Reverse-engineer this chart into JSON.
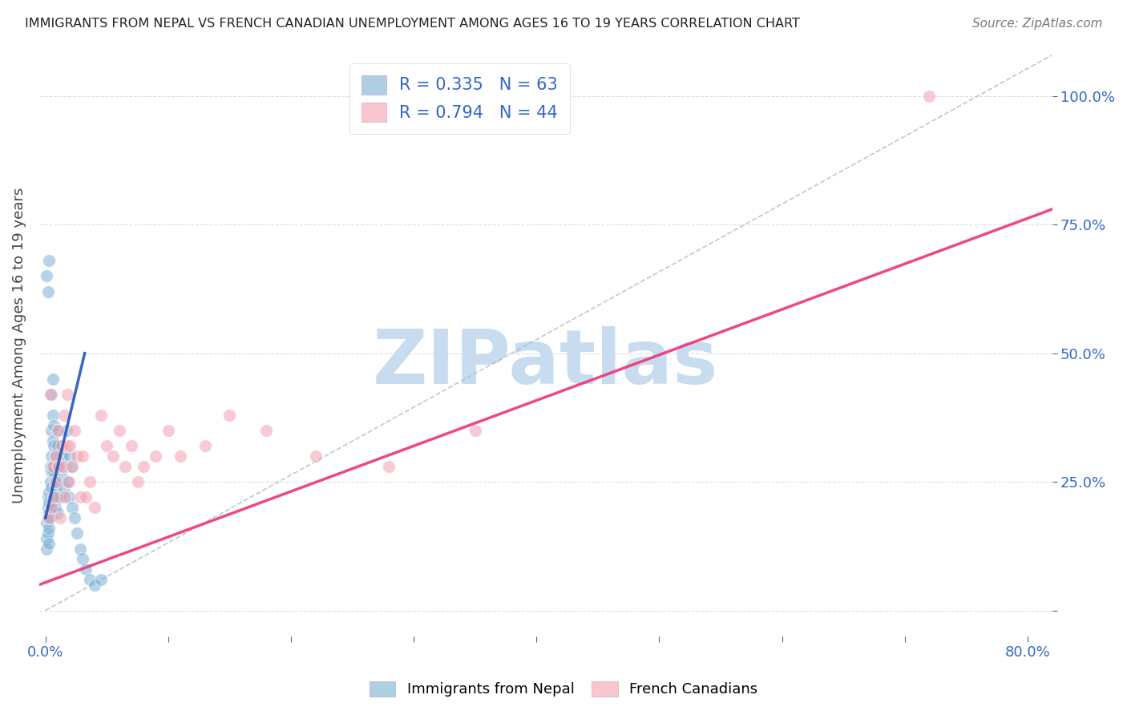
{
  "title": "IMMIGRANTS FROM NEPAL VS FRENCH CANADIAN UNEMPLOYMENT AMONG AGES 16 TO 19 YEARS CORRELATION CHART",
  "source": "Source: ZipAtlas.com",
  "ylabel": "Unemployment Among Ages 16 to 19 years",
  "blue_R": 0.335,
  "blue_N": 63,
  "pink_R": 0.794,
  "pink_N": 44,
  "blue_color": "#7BAFD4",
  "pink_color": "#F4A0B0",
  "blue_line_color": "#2255BB",
  "pink_line_color": "#EE3377",
  "dashed_line_color": "#AABBCC",
  "watermark": "ZIPatlas",
  "watermark_color": "#C8DCF0",
  "legend_label_blue": "Immigrants from Nepal",
  "legend_label_pink": "French Canadians",
  "legend_r_n_color": "#3366CC",
  "blue_scatter_x": [
    0.001,
    0.001,
    0.001,
    0.002,
    0.002,
    0.002,
    0.002,
    0.003,
    0.003,
    0.003,
    0.003,
    0.003,
    0.004,
    0.004,
    0.004,
    0.004,
    0.005,
    0.005,
    0.005,
    0.005,
    0.005,
    0.006,
    0.006,
    0.006,
    0.006,
    0.007,
    0.007,
    0.007,
    0.008,
    0.008,
    0.008,
    0.009,
    0.009,
    0.01,
    0.01,
    0.01,
    0.011,
    0.011,
    0.012,
    0.012,
    0.013,
    0.014,
    0.015,
    0.016,
    0.017,
    0.018,
    0.019,
    0.02,
    0.021,
    0.022,
    0.024,
    0.026,
    0.028,
    0.03,
    0.033,
    0.036,
    0.04,
    0.045,
    0.005,
    0.006,
    0.001,
    0.003,
    0.002
  ],
  "blue_scatter_y": [
    0.17,
    0.14,
    0.12,
    0.2,
    0.22,
    0.18,
    0.15,
    0.19,
    0.23,
    0.16,
    0.21,
    0.13,
    0.25,
    0.28,
    0.22,
    0.18,
    0.3,
    0.35,
    0.27,
    0.24,
    0.2,
    0.33,
    0.28,
    0.38,
    0.22,
    0.32,
    0.27,
    0.36,
    0.3,
    0.24,
    0.2,
    0.25,
    0.22,
    0.28,
    0.32,
    0.19,
    0.35,
    0.28,
    0.3,
    0.22,
    0.26,
    0.3,
    0.24,
    0.28,
    0.35,
    0.25,
    0.22,
    0.3,
    0.28,
    0.2,
    0.18,
    0.15,
    0.12,
    0.1,
    0.08,
    0.06,
    0.05,
    0.06,
    0.42,
    0.45,
    0.65,
    0.68,
    0.62
  ],
  "pink_scatter_x": [
    0.003,
    0.004,
    0.005,
    0.006,
    0.007,
    0.008,
    0.009,
    0.01,
    0.011,
    0.012,
    0.013,
    0.014,
    0.015,
    0.016,
    0.017,
    0.018,
    0.019,
    0.02,
    0.022,
    0.024,
    0.026,
    0.028,
    0.03,
    0.033,
    0.036,
    0.04,
    0.045,
    0.05,
    0.055,
    0.06,
    0.065,
    0.07,
    0.075,
    0.08,
    0.09,
    0.1,
    0.11,
    0.13,
    0.15,
    0.18,
    0.22,
    0.28,
    0.35,
    0.72
  ],
  "pink_scatter_y": [
    0.18,
    0.42,
    0.2,
    0.28,
    0.22,
    0.25,
    0.3,
    0.35,
    0.28,
    0.18,
    0.32,
    0.28,
    0.38,
    0.22,
    0.32,
    0.42,
    0.25,
    0.32,
    0.28,
    0.35,
    0.3,
    0.22,
    0.3,
    0.22,
    0.25,
    0.2,
    0.38,
    0.32,
    0.3,
    0.35,
    0.28,
    0.32,
    0.25,
    0.28,
    0.3,
    0.35,
    0.3,
    0.32,
    0.38,
    0.35,
    0.3,
    0.28,
    0.35,
    1.0
  ],
  "xlim": [
    -0.005,
    0.82
  ],
  "ylim": [
    -0.05,
    1.08
  ],
  "xtick_vals": [
    0.0,
    0.1,
    0.2,
    0.3,
    0.4,
    0.5,
    0.6,
    0.7,
    0.8
  ],
  "ytick_vals": [
    0.0,
    0.25,
    0.5,
    0.75,
    1.0
  ],
  "right_ytick_labels": [
    "",
    "25.0%",
    "50.0%",
    "75.0%",
    "100.0%"
  ],
  "blue_line_x": [
    0.0,
    0.032
  ],
  "blue_line_y": [
    0.18,
    0.5
  ],
  "pink_line_x": [
    -0.005,
    0.82
  ],
  "pink_line_y": [
    0.05,
    0.78
  ],
  "diag_line_x": [
    0.0,
    0.82
  ],
  "diag_line_y": [
    0.0,
    1.08
  ]
}
